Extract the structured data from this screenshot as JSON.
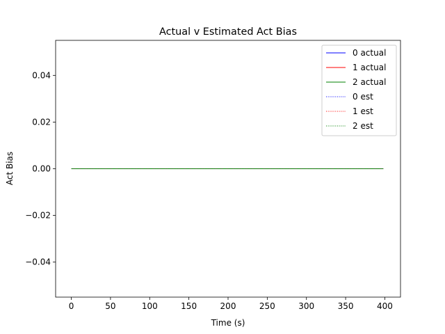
{
  "chart_data": {
    "type": "line",
    "title": "Actual v Estimated Act Bias",
    "xlabel": "Time (s)",
    "ylabel": "Act Bias",
    "xlim": [
      -20,
      420
    ],
    "ylim": [
      -0.055,
      0.055
    ],
    "x_ticks": [
      0,
      50,
      100,
      150,
      200,
      250,
      300,
      350,
      400
    ],
    "x_tick_labels": [
      "0",
      "50",
      "100",
      "150",
      "200",
      "250",
      "300",
      "350",
      "400"
    ],
    "y_ticks": [
      -0.04,
      -0.02,
      0.0,
      0.02,
      0.04
    ],
    "y_tick_labels": [
      "−0.04",
      "−0.02",
      "0.00",
      "0.02",
      "0.04"
    ],
    "grid": false,
    "legend_position": "top-right",
    "x": [
      0,
      398
    ],
    "series": [
      {
        "name": "0 actual",
        "values": [
          0,
          0
        ],
        "color": "#0000ff",
        "style": "solid"
      },
      {
        "name": "1 actual",
        "values": [
          0,
          0
        ],
        "color": "#ff0000",
        "style": "solid"
      },
      {
        "name": "2 actual",
        "values": [
          0,
          0
        ],
        "color": "#008000",
        "style": "solid"
      },
      {
        "name": "0 est",
        "values": [
          0,
          0
        ],
        "color": "#0000ff",
        "style": "dotted"
      },
      {
        "name": "1 est",
        "values": [
          0,
          0
        ],
        "color": "#ff0000",
        "style": "dotted"
      },
      {
        "name": "2 est",
        "values": [
          0,
          0
        ],
        "color": "#008000",
        "style": "dotted"
      }
    ]
  }
}
